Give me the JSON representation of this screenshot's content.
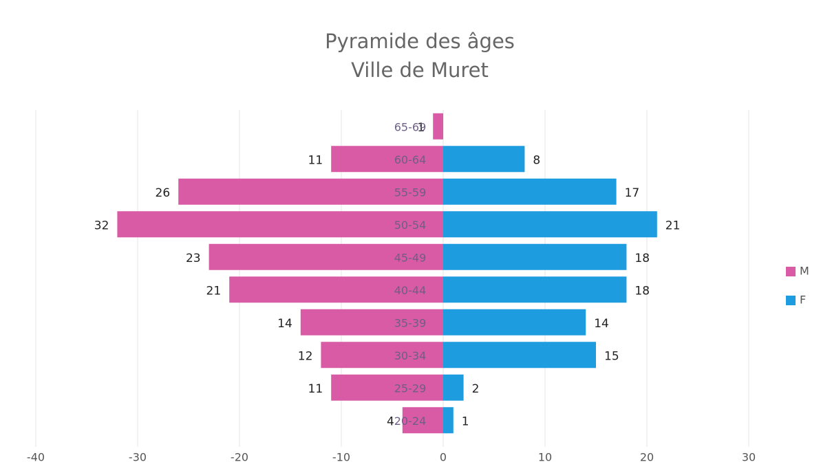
{
  "chart_data": {
    "type": "pyramid",
    "title": "Pyramide des âges",
    "subtitle": "Ville de Muret",
    "categories": [
      "65-69",
      "60-64",
      "55-59",
      "50-54",
      "45-49",
      "40-44",
      "35-39",
      "30-34",
      "25-29",
      "20-24"
    ],
    "series": [
      {
        "name": "M",
        "color": "#d95aa5",
        "values": [
          -1,
          -11,
          -26,
          -32,
          -23,
          -21,
          -14,
          -12,
          -11,
          -4
        ],
        "value_labels": [
          "1",
          "11",
          "26",
          "32",
          "23",
          "21",
          "14",
          "12",
          "11",
          "4"
        ]
      },
      {
        "name": "F",
        "color": "#1e9ce0",
        "values": [
          null,
          8,
          17,
          21,
          18,
          18,
          14,
          15,
          2,
          1
        ]
      }
    ],
    "xlim": [
      -40,
      30
    ],
    "xticks": [
      -40,
      -30,
      -20,
      -10,
      0,
      10,
      20,
      30
    ],
    "grid": true,
    "legend": "right"
  }
}
